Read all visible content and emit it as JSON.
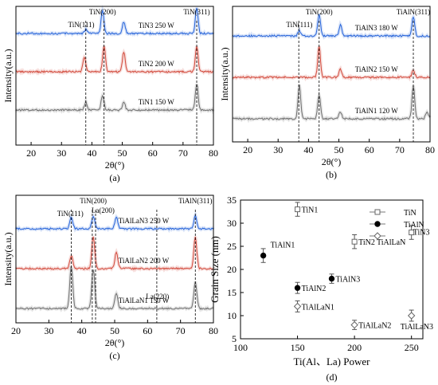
{
  "chart_data": [
    {
      "panel": "(a)",
      "type": "line",
      "xlabel": "2θ(°)",
      "ylabel": "Intensity(a.u.)",
      "xlim": [
        15,
        80
      ],
      "xticks": [
        20,
        30,
        40,
        50,
        60,
        70,
        80
      ],
      "yticks": "none",
      "annotations": [
        {
          "text": "TiN(111)",
          "x": 36.5
        },
        {
          "text": "TiN(200)",
          "x": 43.5
        },
        {
          "text": "TiN(311)",
          "x": 74.5
        }
      ],
      "reference_lines_x": [
        38.0,
        44.0,
        74.5
      ],
      "series": [
        {
          "name": "TiN3 250 W",
          "color": "#2563d9",
          "offset": 3,
          "peaks": [
            {
              "x": 38.0,
              "h": 0.15
            },
            {
              "x": 43.5,
              "h": 0.9
            },
            {
              "x": 50.5,
              "h": 0.45
            },
            {
              "x": 74.5,
              "h": 0.95
            }
          ]
        },
        {
          "name": "TiN2 200 W",
          "color": "#d24a3c",
          "offset": 2,
          "peaks": [
            {
              "x": 37.5,
              "h": 0.55
            },
            {
              "x": 44.0,
              "h": 1.0
            },
            {
              "x": 50.5,
              "h": 0.75
            },
            {
              "x": 74.5,
              "h": 1.0
            }
          ]
        },
        {
          "name": "TiN1 150 W",
          "color": "#707070",
          "offset": 1,
          "peaks": [
            {
              "x": 38.0,
              "h": 0.3
            },
            {
              "x": 43.5,
              "h": 0.55
            },
            {
              "x": 50.5,
              "h": 0.3
            },
            {
              "x": 74.5,
              "h": 1.0
            }
          ]
        }
      ]
    },
    {
      "panel": "(b)",
      "type": "line",
      "xlabel": "2θ(°)",
      "ylabel": "Intensity(a.u.)",
      "xlim": [
        15,
        80
      ],
      "xticks": [
        20,
        30,
        40,
        50,
        60,
        70,
        80
      ],
      "yticks": "none",
      "annotations": [
        {
          "text": "TiN(111)",
          "x": 37.0
        },
        {
          "text": "TiN(200)",
          "x": 43.5
        },
        {
          "text": "TiAlN(311)",
          "x": 74.5
        }
      ],
      "reference_lines_x": [
        36.8,
        43.5,
        74.5
      ],
      "series": [
        {
          "name": "TiAlN3 180 W",
          "color": "#2563d9",
          "offset": 3,
          "peaks": [
            {
              "x": 37.0,
              "h": 0.2
            },
            {
              "x": 43.5,
              "h": 0.9
            },
            {
              "x": 50.5,
              "h": 0.45
            },
            {
              "x": 74.5,
              "h": 0.8
            }
          ]
        },
        {
          "name": "TiAlN2 150 W",
          "color": "#d24a3c",
          "offset": 2,
          "peaks": [
            {
              "x": 43.5,
              "h": 1.3
            },
            {
              "x": 50.5,
              "h": 0.35
            },
            {
              "x": 74.5,
              "h": 0.3
            }
          ]
        },
        {
          "name": "TiAlN1 120 W",
          "color": "#707070",
          "offset": 1,
          "peaks": [
            {
              "x": 37.0,
              "h": 1.4
            },
            {
              "x": 43.5,
              "h": 1.0
            },
            {
              "x": 50.5,
              "h": 0.3
            },
            {
              "x": 74.5,
              "h": 1.4
            },
            {
              "x": 79.0,
              "h": 0.3
            }
          ]
        }
      ]
    },
    {
      "panel": "(c)",
      "type": "line",
      "xlabel": "2θ(°)",
      "ylabel": "Intensity(a.u.)",
      "xlim": [
        20,
        80
      ],
      "xticks": [
        20,
        30,
        40,
        50,
        60,
        70,
        80
      ],
      "yticks": "none",
      "annotations": [
        {
          "text": "TiN(111)",
          "x": 36.5
        },
        {
          "text": "TiN(200)",
          "x": 43.5
        },
        {
          "text": "La(200)",
          "x": 45.0
        },
        {
          "text": "La(220)",
          "x": 63.0
        },
        {
          "text": "TiAlN(311)",
          "x": 74.5
        }
      ],
      "reference_lines_x": [
        36.8,
        43.2,
        44.2,
        62.8,
        74.5
      ],
      "series": [
        {
          "name": "TiAlLaN3 250 W",
          "color": "#2563d9",
          "offset": 3,
          "peaks": [
            {
              "x": 36.8,
              "h": 0.45
            },
            {
              "x": 43.5,
              "h": 0.5
            },
            {
              "x": 50.5,
              "h": 0.45
            },
            {
              "x": 74.5,
              "h": 0.5
            }
          ]
        },
        {
          "name": "TiAlLaN2 200 W",
          "color": "#d24a3c",
          "offset": 2,
          "peaks": [
            {
              "x": 36.8,
              "h": 0.5
            },
            {
              "x": 43.5,
              "h": 1.2
            },
            {
              "x": 50.5,
              "h": 0.6
            },
            {
              "x": 74.5,
              "h": 1.2
            }
          ]
        },
        {
          "name": "TiAlLaN1 150 W",
          "color": "#707070",
          "offset": 1,
          "peaks": [
            {
              "x": 36.8,
              "h": 1.6
            },
            {
              "x": 43.5,
              "h": 1.5
            },
            {
              "x": 50.5,
              "h": 0.55
            },
            {
              "x": 74.5,
              "h": 1.0
            }
          ]
        }
      ]
    },
    {
      "panel": "(d)",
      "type": "scatter",
      "xlabel": "Ti(Al、La) Power",
      "ylabel": "Grain Size (nm)",
      "xlim": [
        100,
        260
      ],
      "ylim": [
        5,
        35
      ],
      "xticks": [
        100,
        150,
        200,
        250
      ],
      "yticks": [
        5,
        10,
        15,
        20,
        25,
        30,
        35
      ],
      "legend_position": "top-right",
      "series": [
        {
          "name": "TiN",
          "marker": "square-open",
          "points": [
            {
              "x": 150,
              "y": 33,
              "err": 1.5,
              "label": "TiN1"
            },
            {
              "x": 200,
              "y": 26,
              "err": 1.5,
              "label": "TiN2"
            },
            {
              "x": 250,
              "y": 28,
              "err": 1.5,
              "label": "TiN3"
            }
          ]
        },
        {
          "name": "TiAlN",
          "marker": "circle-filled",
          "points": [
            {
              "x": 120,
              "y": 23,
              "err": 1.5,
              "label": "TiAlN1"
            },
            {
              "x": 150,
              "y": 16,
              "err": 1.2,
              "label": "TiAlN2"
            },
            {
              "x": 180,
              "y": 18,
              "err": 1.0,
              "label": "TiAlN3"
            }
          ]
        },
        {
          "name": "TiAlLaN",
          "marker": "diamond-open",
          "points": [
            {
              "x": 150,
              "y": 12,
              "err": 1.2,
              "label": "TiAlLaN1"
            },
            {
              "x": 200,
              "y": 8,
              "err": 1.0,
              "label": "TiAlLaN2"
            },
            {
              "x": 250,
              "y": 10,
              "err": 1.2,
              "label": "TiAlLaN3"
            }
          ]
        }
      ]
    }
  ]
}
